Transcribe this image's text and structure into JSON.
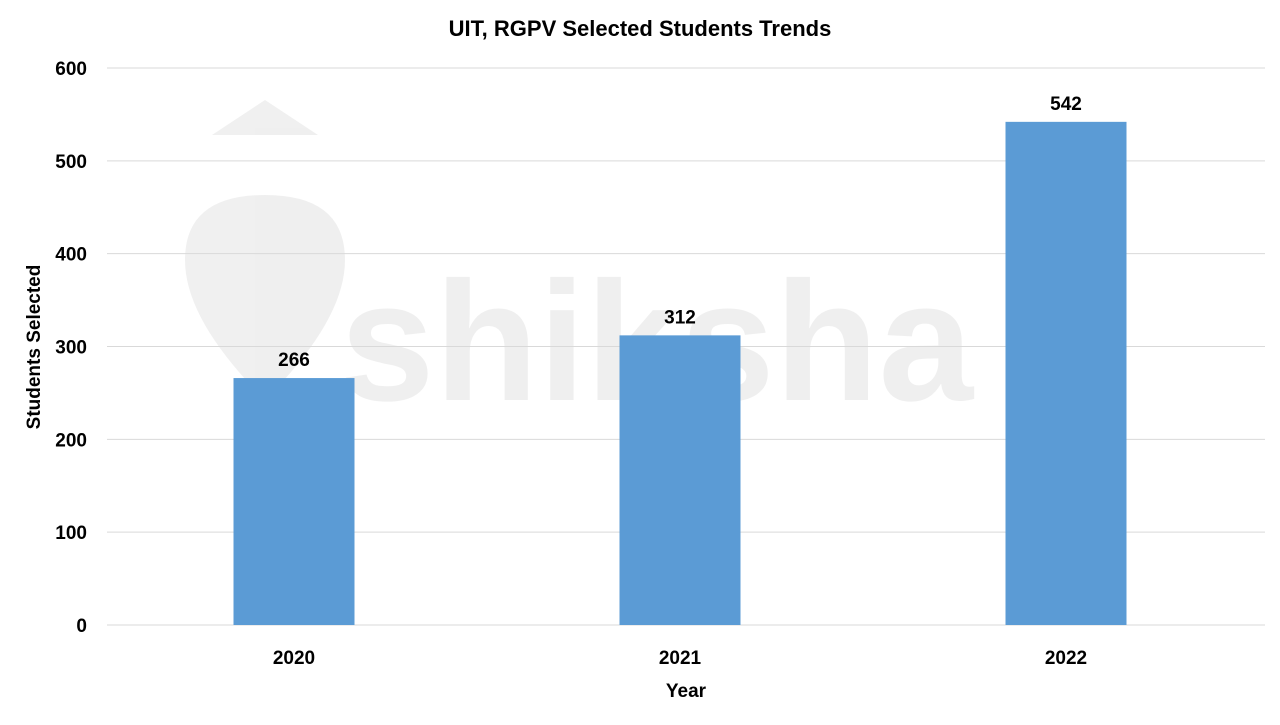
{
  "chart_data": {
    "type": "bar",
    "title": "UIT, RGPV Selected Students Trends",
    "xlabel": "Year",
    "ylabel": "Students Selected",
    "categories": [
      "2020",
      "2021",
      "2022"
    ],
    "values": [
      266,
      312,
      542
    ],
    "data_labels": [
      "266",
      "312",
      "542"
    ],
    "ylim": [
      0,
      600
    ],
    "yticks": [
      0,
      100,
      200,
      300,
      400,
      500,
      600
    ],
    "grid": true,
    "legend": "none",
    "bar_color": "#5b9bd5",
    "grid_color": "#d9d9d9",
    "watermark": "shiksha"
  }
}
